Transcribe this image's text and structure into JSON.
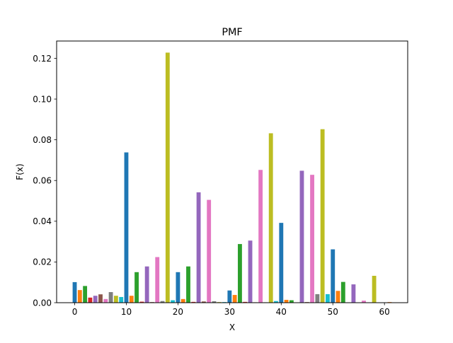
{
  "chart_data": {
    "type": "bar",
    "title": "PMF",
    "xlabel": "X",
    "ylabel": "F(x)",
    "xlim": [
      -3.5,
      64.5
    ],
    "ylim": [
      0,
      0.1285
    ],
    "xticks": [
      0,
      10,
      20,
      30,
      40,
      50,
      60
    ],
    "xtick_labels": [
      "0",
      "10",
      "20",
      "30",
      "40",
      "50",
      "60"
    ],
    "yticks": [
      0,
      0.02,
      0.04,
      0.06,
      0.08,
      0.1,
      0.12
    ],
    "ytick_labels": [
      "0.00",
      "0.02",
      "0.04",
      "0.06",
      "0.08",
      "0.10",
      "0.12"
    ],
    "grid": false,
    "legend": "none",
    "palette": [
      "#1f77b4",
      "#ff7f0e",
      "#2ca02c",
      "#d62728",
      "#9467bd",
      "#8c564b",
      "#e377c2",
      "#7f7f7f",
      "#bcbd22",
      "#17becf"
    ],
    "x": [
      0,
      1,
      2,
      3,
      4,
      5,
      6,
      7,
      8,
      9,
      10,
      11,
      12,
      13,
      14,
      15,
      16,
      17,
      18,
      19,
      20,
      21,
      22,
      23,
      24,
      25,
      26,
      27,
      28,
      29,
      30,
      31,
      32,
      33,
      34,
      35,
      36,
      37,
      38,
      39,
      40,
      41,
      42,
      43,
      44,
      45,
      46,
      47,
      48,
      49,
      50,
      51,
      52,
      53,
      54,
      55,
      56,
      57,
      58,
      59,
      60,
      61
    ],
    "values": [
      0.0101,
      0.0062,
      0.0082,
      0.0025,
      0.0034,
      0.0041,
      0.0018,
      0.0052,
      0.0034,
      0.0028,
      0.0738,
      0.0034,
      0.015,
      0.0005,
      0.0178,
      0.0003,
      0.0224,
      0.0008,
      0.1228,
      0.0012,
      0.015,
      0.0018,
      0.0178,
      0.0004,
      0.0542,
      0.0006,
      0.0505,
      0.0007,
      0.0003,
      0.0003,
      0.006,
      0.0038,
      0.0288,
      0.0004,
      0.0305,
      0.0002,
      0.0652,
      0.0002,
      0.0832,
      0.0008,
      0.0392,
      0.0014,
      0.0012,
      0.0001,
      0.0648,
      0.0003,
      0.0628,
      0.0042,
      0.0852,
      0.0042,
      0.0262,
      0.0058,
      0.0102,
      0.0001,
      0.009,
      0.0001,
      0.001,
      0.0001,
      0.0132,
      0.0001,
      0.0001,
      0.0003
    ]
  }
}
